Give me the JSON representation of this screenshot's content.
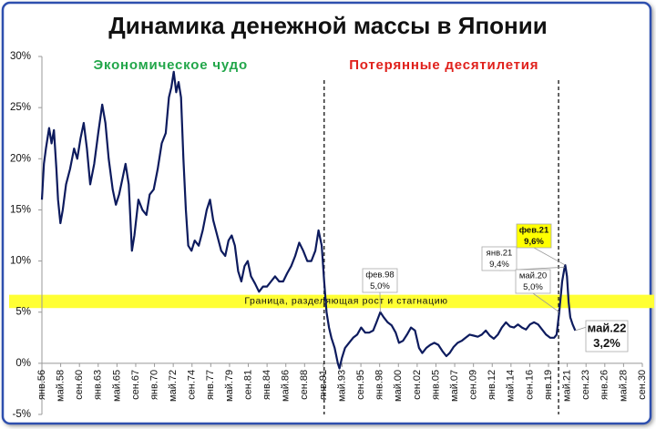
{
  "chart_data": {
    "type": "line",
    "title": "Динамика денежной массы в Японии",
    "annotations": [
      {
        "text": "Экономическое чудо",
        "color": "#22a64a",
        "x": 1972.0
      },
      {
        "text": "Потерянные десятилетия",
        "color": "#e0201b",
        "x": 2006.0
      }
    ],
    "band": {
      "label": "Граница, разделяющая рост и стагнацию",
      "range": [
        5.4,
        6.7
      ],
      "color": "#ffff33"
    },
    "vlines": [
      1991.1,
      2020.25
    ],
    "callouts": [
      {
        "date": "фев.98",
        "label": "5,0%",
        "x": 1998.08,
        "y": 5
      },
      {
        "date": "янв.21",
        "label": "9,4%",
        "x": 2021.0,
        "y": 9.4
      },
      {
        "date": "фев.21",
        "label": "9,6%",
        "x": 2021.08,
        "y": 9.6
      },
      {
        "date": "май.20",
        "label": "5,0%",
        "x": 2020.33,
        "y": 5
      },
      {
        "date": "май.22",
        "label": "3,2%",
        "x": 2022.33,
        "y": 3.2
      }
    ],
    "x": [
      1956.0,
      1956.25,
      1956.5,
      1956.9,
      1957.2,
      1957.5,
      1957.8,
      1958.0,
      1958.3,
      1958.6,
      1959.0,
      1959.5,
      1960.0,
      1960.4,
      1960.8,
      1961.2,
      1961.6,
      1962.0,
      1962.5,
      1963.0,
      1963.5,
      1963.9,
      1964.3,
      1964.8,
      1965.2,
      1965.6,
      1966.0,
      1966.4,
      1966.8,
      1967.2,
      1967.5,
      1968.0,
      1968.5,
      1969.0,
      1969.4,
      1969.9,
      1970.4,
      1970.9,
      1971.4,
      1971.8,
      1972.1,
      1972.4,
      1972.7,
      1973.0,
      1973.3,
      1973.6,
      1973.9,
      1974.2,
      1974.6,
      1975.0,
      1975.5,
      1976.0,
      1976.5,
      1976.9,
      1977.3,
      1977.8,
      1978.3,
      1978.8,
      1979.2,
      1979.6,
      1980.0,
      1980.4,
      1980.8,
      1981.2,
      1981.6,
      1982.0,
      1982.5,
      1983.0,
      1983.5,
      1984.0,
      1984.5,
      1985.0,
      1985.5,
      1986.0,
      1986.5,
      1987.0,
      1987.5,
      1988.0,
      1988.5,
      1989.0,
      1989.5,
      1990.0,
      1990.4,
      1990.8,
      1991.1,
      1991.4,
      1991.7,
      1992.0,
      1992.4,
      1992.8,
      1993.0,
      1993.3,
      1993.7,
      1994.2,
      1994.7,
      1995.2,
      1995.7,
      1996.2,
      1996.7,
      1997.2,
      1997.6,
      1998.08,
      1998.5,
      1999.0,
      1999.5,
      2000.0,
      2000.4,
      2000.9,
      2001.4,
      2001.9,
      2002.4,
      2002.9,
      2003.3,
      2003.8,
      2004.3,
      2004.8,
      2005.3,
      2005.8,
      2006.3,
      2006.7,
      2007.2,
      2007.7,
      2008.2,
      2008.7,
      2009.2,
      2009.7,
      2010.2,
      2010.7,
      2011.2,
      2011.7,
      2012.2,
      2012.7,
      2013.2,
      2013.7,
      2014.2,
      2014.7,
      2015.2,
      2015.7,
      2016.2,
      2016.7,
      2017.2,
      2017.7,
      2018.2,
      2018.7,
      2019.2,
      2019.7,
      2020.0,
      2020.33,
      2020.7,
      2021.0,
      2021.08,
      2021.3,
      2021.5,
      2021.7,
      2022.0,
      2022.33
    ],
    "series": [
      {
        "color": "#0d1b5e",
        "values": [
          16,
          19.5,
          21,
          23,
          21.5,
          22.8,
          19,
          16,
          13.7,
          15,
          17.5,
          19,
          21,
          20,
          22,
          23.5,
          21,
          17.5,
          19.5,
          22.5,
          25.3,
          23.5,
          20,
          17,
          15.5,
          16.5,
          18,
          19.5,
          17.5,
          11,
          12.5,
          16,
          15,
          14.5,
          16.5,
          17,
          19,
          21.5,
          22.5,
          26,
          27,
          28.5,
          26.5,
          27.5,
          26,
          20,
          15,
          11.5,
          11,
          12,
          11.5,
          13,
          15,
          16,
          14,
          12.5,
          11,
          10.5,
          12,
          12.5,
          11.5,
          9,
          8,
          9.5,
          10,
          8.5,
          7.8,
          7,
          7.5,
          7.5,
          8,
          8.5,
          8,
          8,
          8.8,
          9.5,
          10.5,
          11.8,
          11,
          10,
          10,
          11,
          13,
          11.5,
          8,
          5,
          3.5,
          2.5,
          1.5,
          0,
          -0.5,
          0.5,
          1.5,
          2,
          2.5,
          2.8,
          3.5,
          3,
          3,
          3.2,
          4,
          5,
          4.5,
          4,
          3.7,
          3,
          2,
          2.2,
          2.8,
          3.5,
          3.2,
          1.5,
          1,
          1.5,
          1.8,
          2,
          1.8,
          1.2,
          0.7,
          1,
          1.6,
          2,
          2.2,
          2.5,
          2.8,
          2.7,
          2.6,
          2.8,
          3.2,
          2.7,
          2.4,
          2.8,
          3.5,
          4,
          3.6,
          3.5,
          3.8,
          3.5,
          3.3,
          3.8,
          4,
          3.8,
          3.3,
          2.8,
          2.5,
          2.5,
          2.8,
          5,
          8,
          9.4,
          9.6,
          8.5,
          6,
          4.5,
          3.8,
          3.2
        ]
      }
    ],
    "ylim": [
      -5,
      30
    ],
    "yticks": [
      {
        "value": -5,
        "label": "-5%"
      },
      {
        "value": 0,
        "label": "0%"
      },
      {
        "value": 5,
        "label": "5%"
      },
      {
        "value": 10,
        "label": "10%"
      },
      {
        "value": 15,
        "label": "15%"
      },
      {
        "value": 20,
        "label": "20%"
      },
      {
        "value": 25,
        "label": "25%"
      },
      {
        "value": 30,
        "label": "30%"
      }
    ],
    "xlim": [
      1956.0,
      2030.667
    ],
    "xticks": [
      {
        "value": 1956.0,
        "label": "янв.56"
      },
      {
        "value": 1958.333,
        "label": "май.58"
      },
      {
        "value": 1960.667,
        "label": "сен.60"
      },
      {
        "value": 1963.0,
        "label": "янв.63"
      },
      {
        "value": 1965.333,
        "label": "май.65"
      },
      {
        "value": 1967.667,
        "label": "сен.67"
      },
      {
        "value": 1970.0,
        "label": "янв.70"
      },
      {
        "value": 1972.333,
        "label": "май.72"
      },
      {
        "value": 1974.667,
        "label": "сен.74"
      },
      {
        "value": 1977.0,
        "label": "янв.77"
      },
      {
        "value": 1979.333,
        "label": "май.79"
      },
      {
        "value": 1981.667,
        "label": "сен.81"
      },
      {
        "value": 1984.0,
        "label": "янв.84"
      },
      {
        "value": 1986.333,
        "label": "май.86"
      },
      {
        "value": 1988.667,
        "label": "сен.88"
      },
      {
        "value": 1991.0,
        "label": "янв.91"
      },
      {
        "value": 1993.333,
        "label": "май.93"
      },
      {
        "value": 1995.667,
        "label": "сен.95"
      },
      {
        "value": 1998.0,
        "label": "янв.98"
      },
      {
        "value": 2000.333,
        "label": "май.00"
      },
      {
        "value": 2002.667,
        "label": "сен.02"
      },
      {
        "value": 2005.0,
        "label": "янв.05"
      },
      {
        "value": 2007.333,
        "label": "май.07"
      },
      {
        "value": 2009.667,
        "label": "сен.09"
      },
      {
        "value": 2012.0,
        "label": "янв.12"
      },
      {
        "value": 2014.333,
        "label": "май.14"
      },
      {
        "value": 2016.667,
        "label": "сен.16"
      },
      {
        "value": 2019.0,
        "label": "янв.19"
      },
      {
        "value": 2021.333,
        "label": "май.21"
      },
      {
        "value": 2023.667,
        "label": "сен.23"
      },
      {
        "value": 2026.0,
        "label": "янв.26"
      },
      {
        "value": 2028.333,
        "label": "май.28"
      },
      {
        "value": 2030.667,
        "label": "сен.30"
      }
    ],
    "grid": false
  }
}
